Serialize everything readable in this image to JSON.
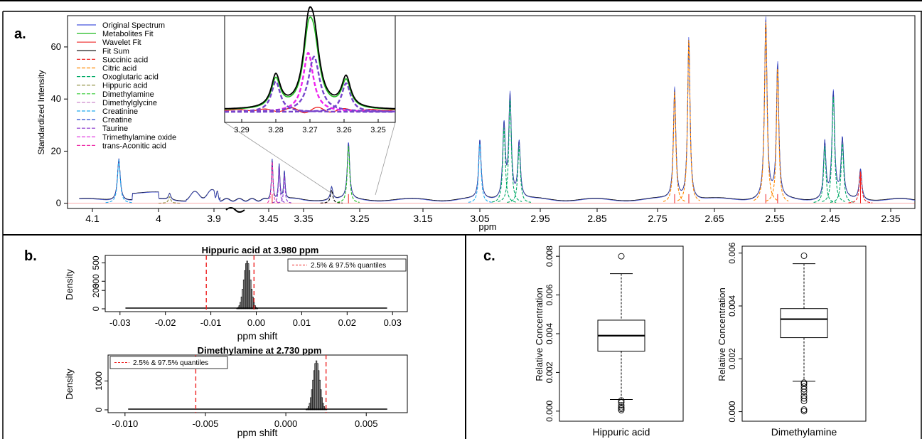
{
  "panel_labels": {
    "a": "a.",
    "b": "b.",
    "c": "c."
  },
  "chart_data": [
    {
      "id": "a",
      "type": "line",
      "xlabel": "ppm",
      "ylabel": "Standardized Intensity",
      "x_ticks": [
        "4.1",
        "4",
        "3.9",
        "3.45",
        "3.35",
        "3.25",
        "3.15",
        "3.05",
        "2.95",
        "2.85",
        "2.75",
        "2.65",
        "2.55",
        "2.45",
        "2.35"
      ],
      "y_ticks": [
        0,
        20,
        40,
        60
      ],
      "ylim": [
        -2,
        72
      ],
      "axis_break_after": "3.9",
      "legend_position": "top-left",
      "legend": [
        {
          "name": "Original Spectrum",
          "color": "#4455dd",
          "style": "solid"
        },
        {
          "name": "Metabolites Fit",
          "color": "#22bb22",
          "style": "solid"
        },
        {
          "name": "Wavelet Fit",
          "color": "#ee2222",
          "style": "solid"
        },
        {
          "name": "Fit Sum",
          "color": "#000000",
          "style": "solid"
        },
        {
          "name": "Succinic acid",
          "color": "#ee2222",
          "style": "dashed"
        },
        {
          "name": "Citric acid",
          "color": "#ff8800",
          "style": "dashed"
        },
        {
          "name": "Oxoglutaric acid",
          "color": "#00aa66",
          "style": "dashed"
        },
        {
          "name": "Hippuric acid",
          "color": "#888833",
          "style": "dashed"
        },
        {
          "name": "Dimethylamine",
          "color": "#33cc33",
          "style": "dashed"
        },
        {
          "name": "Dimethylglycine",
          "color": "#cc88cc",
          "style": "dashed"
        },
        {
          "name": "Creatinine",
          "color": "#22aaee",
          "style": "dashed"
        },
        {
          "name": "Creatine",
          "color": "#2244cc",
          "style": "dashed"
        },
        {
          "name": "Taurine",
          "color": "#8833cc",
          "style": "dashed"
        },
        {
          "name": "Trimethylamine oxide",
          "color": "#dd22dd",
          "style": "dashed"
        },
        {
          "name": "trans-Aconitic acid",
          "color": "#ee33aa",
          "style": "dashed"
        }
      ],
      "peaks": [
        {
          "ppm": 4.06,
          "height": 16.5,
          "color": "#22aaee",
          "label": "Creatinine"
        },
        {
          "ppm": 3.98,
          "height": 2.5,
          "color": "#888833",
          "label": "Hippuric acid"
        },
        {
          "ppm": 3.44,
          "height": 16.0,
          "color": "#ee33aa",
          "label": "trans-Aconitic acid"
        },
        {
          "ppm": 3.42,
          "height": 14.0,
          "color": "#8833cc",
          "label": "Taurine"
        },
        {
          "ppm": 3.405,
          "height": 11.0,
          "color": "#8833cc",
          "label": "Taurine"
        },
        {
          "ppm": 3.3,
          "height": 5.0,
          "color": "#000000",
          "label": ""
        },
        {
          "ppm": 3.27,
          "height": 22.0,
          "color": "#22bb22",
          "label": "Trimethylamine oxide"
        },
        {
          "ppm": 3.05,
          "height": 23.0,
          "color": "#22aaee",
          "label": "Creatine"
        },
        {
          "ppm": 3.01,
          "height": 29.0,
          "color": "#00aa66",
          "label": "Oxoglutaric acid"
        },
        {
          "ppm": 3.0,
          "height": 40.0,
          "color": "#00aa66",
          "label": "Oxoglutaric acid"
        },
        {
          "ppm": 2.985,
          "height": 22.0,
          "color": "#00aa66",
          "label": "Oxoglutaric acid"
        },
        {
          "ppm": 2.72,
          "height": 43.0,
          "color": "#ff8800",
          "label": "Citric acid"
        },
        {
          "ppm": 2.695,
          "height": 63.0,
          "color": "#ff8800",
          "label": "Citric acid"
        },
        {
          "ppm": 2.565,
          "height": 70.0,
          "color": "#ff8800",
          "label": "Citric acid"
        },
        {
          "ppm": 2.545,
          "height": 52.0,
          "color": "#ff8800",
          "label": "Citric acid"
        },
        {
          "ppm": 2.46,
          "height": 22.0,
          "color": "#00aa66",
          "label": "Oxoglutaric acid"
        },
        {
          "ppm": 2.445,
          "height": 41.0,
          "color": "#00aa66",
          "label": "Oxoglutaric acid"
        },
        {
          "ppm": 2.43,
          "height": 23.0,
          "color": "#00aa66",
          "label": "Oxoglutaric acid"
        },
        {
          "ppm": 2.4,
          "height": 12.0,
          "color": "#ee2222",
          "label": "Succinic acid"
        }
      ],
      "inset": {
        "x_ticks": [
          "3.29",
          "3.28",
          "3.27",
          "3.26",
          "3.25"
        ],
        "xlim": [
          3.295,
          3.245
        ]
      }
    },
    {
      "id": "b1",
      "type": "bar",
      "title": "Hippuric acid at 3.980 ppm",
      "xlabel": "ppm shift",
      "ylabel": "Density",
      "x_ticks": [
        "-0.03",
        "-0.02",
        "-0.01",
        "0.00",
        "0.01",
        "0.02",
        "0.03"
      ],
      "y_ticks": [
        "0",
        "200",
        "300",
        "500"
      ],
      "xlim": [
        -0.032,
        0.032
      ],
      "ylim": [
        0,
        550
      ],
      "quantiles": [
        -0.011,
        -0.0005
      ],
      "histogram_center": -0.002,
      "histogram_peak": 520,
      "legend": "2.5% & 97.5% quantiles",
      "legend_position": "top-right"
    },
    {
      "id": "b2",
      "type": "bar",
      "title": "Dimethylamine at 2.730 ppm",
      "xlabel": "ppm shift",
      "ylabel": "Density",
      "x_ticks": [
        "-0.010",
        "-0.005",
        "0.000",
        "0.005"
      ],
      "y_ticks": [
        "0",
        "1000"
      ],
      "xlim": [
        -0.0107,
        0.0072
      ],
      "ylim": [
        0,
        1800
      ],
      "quantiles": [
        -0.0056,
        0.0025
      ],
      "histogram_center": 0.0019,
      "histogram_peak": 1700,
      "legend": "2.5% & 97.5% quantiles",
      "legend_position": "top-left"
    },
    {
      "id": "c1",
      "type": "boxplot",
      "category": "Hippuric acid",
      "ylabel": "Relative Concentration",
      "y_ticks": [
        "0.000",
        "0.002",
        "0.004",
        "0.006",
        "0.008"
      ],
      "ylim": [
        -0.0003,
        0.0083
      ],
      "stats": {
        "min": 0.0006,
        "q1": 0.0031,
        "median": 0.0039,
        "q3": 0.0047,
        "max": 0.0071
      },
      "outliers": [
        0.008,
        0.00055,
        0.00045,
        0.0003,
        0.0002,
        0.00012,
        5e-05
      ]
    },
    {
      "id": "c2",
      "type": "boxplot",
      "category": "Dimethylamine",
      "ylabel": "Relative Concentration",
      "y_ticks": [
        "0.000",
        "0.002",
        "0.004",
        "0.006"
      ],
      "ylim": [
        -0.0002,
        0.0061
      ],
      "stats": {
        "min": 0.00115,
        "q1": 0.0028,
        "median": 0.0035,
        "q3": 0.0039,
        "max": 0.0056
      },
      "outliers": [
        0.0059,
        0.0011,
        0.00105,
        0.00095,
        0.00085,
        0.00075,
        0.0006,
        0.0005,
        0.0004,
        8e-05,
        2e-05
      ]
    }
  ]
}
